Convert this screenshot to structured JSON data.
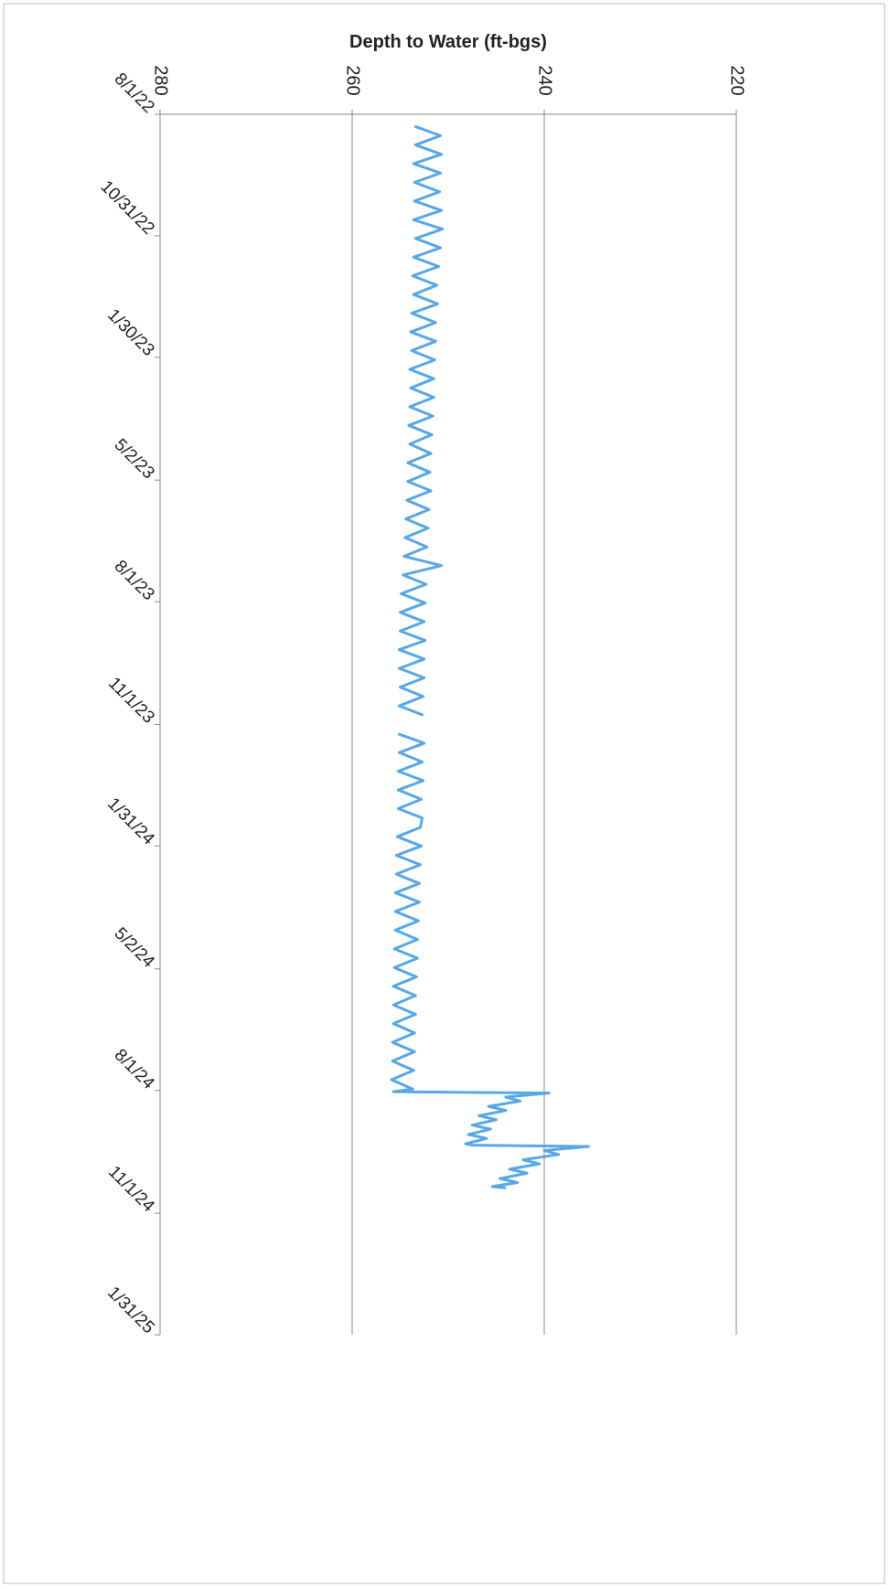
{
  "chart_data": {
    "type": "line",
    "title": "Depth to Water (ft-bgs)",
    "xlim": [
      "8/1/22",
      "1/31/25"
    ],
    "xticks": [
      "8/1/22",
      "10/31/22",
      "1/30/23",
      "5/2/23",
      "8/1/23",
      "11/1/23",
      "1/31/24",
      "5/2/24",
      "8/1/24",
      "11/1/24",
      "1/31/25"
    ],
    "ylim": [
      280,
      220
    ],
    "yticks": [
      280,
      260,
      240,
      220
    ],
    "grid": true,
    "x": [
      "8/10/22",
      "8/17/22",
      "8/24/22",
      "8/31/22",
      "9/7/22",
      "9/14/22",
      "9/21/22",
      "9/28/22",
      "10/5/22",
      "10/12/22",
      "10/19/22",
      "10/26/22",
      "11/2/22",
      "11/9/22",
      "11/16/22",
      "11/23/22",
      "11/30/22",
      "12/7/22",
      "12/14/22",
      "12/21/22",
      "12/28/22",
      "1/4/23",
      "1/11/23",
      "1/18/23",
      "1/25/23",
      "2/1/23",
      "2/8/23",
      "2/15/23",
      "2/22/23",
      "3/1/23",
      "3/8/23",
      "3/15/23",
      "3/22/23",
      "3/29/23",
      "4/5/23",
      "4/12/23",
      "4/19/23",
      "4/26/23",
      "5/3/23",
      "5/10/23",
      "5/17/23",
      "5/24/23",
      "5/31/23",
      "6/7/23",
      "6/14/23",
      "6/21/23",
      "6/28/23",
      "7/5/23",
      "7/12/23",
      "7/19/23",
      "7/26/23",
      "8/2/23",
      "8/9/23",
      "8/16/23",
      "8/23/23",
      "8/30/23",
      "9/6/23",
      "9/13/23",
      "9/20/23",
      "9/27/23",
      "10/4/23",
      "10/11/23",
      "10/18/23",
      "10/25/23",
      "11/1/23",
      "11/8/23",
      "11/15/23",
      "11/22/23",
      "11/29/23",
      "12/6/23",
      "12/13/23",
      "12/20/23",
      "12/27/23",
      "1/3/24",
      "1/10/24",
      "1/17/24",
      "1/24/24",
      "1/31/24",
      "2/7/24",
      "2/14/24",
      "2/21/24",
      "2/28/24",
      "3/6/24",
      "3/13/24",
      "3/20/24",
      "3/27/24",
      "4/3/24",
      "4/10/24",
      "4/17/24",
      "4/24/24",
      "5/1/24",
      "5/8/24",
      "5/15/24",
      "5/22/24",
      "5/29/24",
      "6/5/24",
      "6/12/24",
      "6/19/24",
      "6/26/24",
      "7/3/24",
      "7/10/24",
      "7/17/24",
      "7/24/24",
      "7/31/24",
      "8/2/24",
      "8/3/24",
      "8/6/24",
      "8/9/24",
      "8/13/24",
      "8/16/24",
      "8/20/24",
      "8/23/24",
      "8/27/24",
      "8/30/24",
      "9/3/24",
      "9/6/24",
      "9/10/24",
      "9/11/24",
      "9/12/24",
      "9/15/24",
      "9/18/24",
      "9/22/24",
      "9/25/24",
      "9/29/24",
      "10/2/24",
      "10/6/24",
      "10/9/24",
      "10/12/24",
      "10/13/24"
    ],
    "series": [
      {
        "color": "#56a8e8",
        "values": [
          253.5,
          250.8,
          253.4,
          250.7,
          253.6,
          250.8,
          253.5,
          250.9,
          253.5,
          250.7,
          253.6,
          250.6,
          253.4,
          250.8,
          253.6,
          251.0,
          253.7,
          251.2,
          253.6,
          251.1,
          253.8,
          251.3,
          253.9,
          251.3,
          253.8,
          251.4,
          254.0,
          251.5,
          253.9,
          251.5,
          254.0,
          251.6,
          254.1,
          251.7,
          254.0,
          251.8,
          254.2,
          251.9,
          254.2,
          251.8,
          254.3,
          252.0,
          254.4,
          252.1,
          254.5,
          252.2,
          254.6,
          250.7,
          254.7,
          252.3,
          254.9,
          252.4,
          255.0,
          252.5,
          255.0,
          252.4,
          255.1,
          252.5,
          255.1,
          252.5,
          255.0,
          252.6,
          255.1,
          252.6,
          null,
          255.2,
          252.5,
          255.1,
          252.7,
          255.2,
          252.6,
          255.2,
          252.8,
          255.2,
          252.7,
          252.9,
          255.3,
          252.8,
          255.4,
          252.9,
          255.4,
          253.0,
          255.5,
          253.0,
          255.5,
          253.1,
          255.5,
          253.2,
          255.6,
          253.2,
          255.6,
          253.3,
          255.7,
          253.4,
          255.7,
          253.4,
          255.7,
          253.5,
          255.8,
          253.5,
          255.8,
          253.6,
          255.9,
          253.7,
          255.7,
          239.5,
          244.0,
          242.5,
          245.8,
          244.0,
          246.8,
          245.0,
          247.5,
          245.6,
          247.9,
          246.0,
          248.2,
          247.5,
          235.4,
          240.0,
          238.5,
          242.2,
          240.5,
          243.6,
          241.8,
          244.6,
          242.8,
          245.4,
          244.0
        ]
      }
    ]
  }
}
